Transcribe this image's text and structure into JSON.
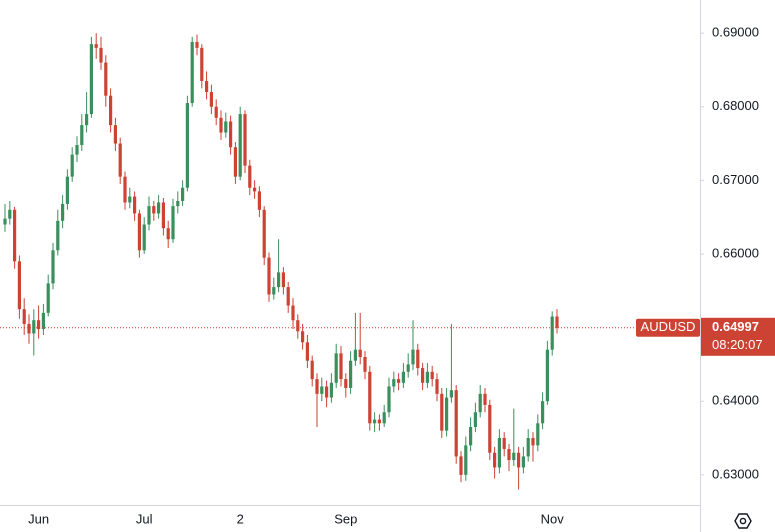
{
  "chart_data": {
    "type": "candlestick",
    "symbol": "AUDUSD",
    "countdown": "08:20:07",
    "up_color": "#3a8f5c",
    "down_color": "#cc4233",
    "ylim": [
      0.6259,
      0.6945
    ],
    "yticks": [
      {
        "value": 0.63,
        "label": "0.63000"
      },
      {
        "value": 0.64,
        "label": "0.64000"
      },
      {
        "value": 0.65,
        "label": "0.65000"
      },
      {
        "value": 0.66,
        "label": "0.66000"
      },
      {
        "value": 0.67,
        "label": "0.67000"
      },
      {
        "value": 0.68,
        "label": "0.68000"
      },
      {
        "value": 0.69,
        "label": "0.69000"
      }
    ],
    "categories": [
      null,
      null,
      null,
      null,
      null,
      null,
      null,
      "Jun",
      null,
      null,
      null,
      null,
      null,
      null,
      null,
      null,
      null,
      null,
      null,
      null,
      null,
      null,
      null,
      null,
      null,
      null,
      null,
      null,
      null,
      "Jul",
      null,
      null,
      null,
      null,
      null,
      null,
      null,
      null,
      null,
      null,
      null,
      null,
      null,
      null,
      null,
      null,
      null,
      null,
      null,
      "2",
      null,
      null,
      null,
      null,
      null,
      null,
      null,
      null,
      null,
      null,
      null,
      null,
      null,
      null,
      null,
      null,
      null,
      null,
      null,
      null,
      null,
      "Sep",
      null,
      null,
      null,
      null,
      null,
      null,
      null,
      null,
      null,
      null,
      null,
      null,
      null,
      null,
      null,
      null,
      null,
      null,
      null,
      null,
      null,
      null,
      null,
      null,
      null,
      null,
      null,
      null,
      null,
      null,
      null,
      null,
      null,
      null,
      null,
      null,
      null,
      null,
      null,
      null,
      null,
      null,
      "Nov",
      null,
      null,
      null
    ],
    "ohlc": [
      [
        0.664,
        0.6668,
        0.663,
        0.6648
      ],
      [
        0.6648,
        0.6672,
        0.664,
        0.666
      ],
      [
        0.666,
        0.6664,
        0.658,
        0.659
      ],
      [
        0.659,
        0.6598,
        0.6512,
        0.6525
      ],
      [
        0.6525,
        0.654,
        0.649,
        0.6505
      ],
      [
        0.6505,
        0.6518,
        0.6478,
        0.6492
      ],
      [
        0.6492,
        0.6525,
        0.6462,
        0.651
      ],
      [
        0.651,
        0.653,
        0.6485,
        0.6498
      ],
      [
        0.6498,
        0.6532,
        0.649,
        0.652
      ],
      [
        0.652,
        0.6572,
        0.6515,
        0.656
      ],
      [
        0.656,
        0.6615,
        0.6552,
        0.6605
      ],
      [
        0.6605,
        0.666,
        0.6598,
        0.6645
      ],
      [
        0.6645,
        0.668,
        0.6635,
        0.6668
      ],
      [
        0.6668,
        0.6715,
        0.666,
        0.6705
      ],
      [
        0.6705,
        0.6745,
        0.6698,
        0.6735
      ],
      [
        0.6735,
        0.676,
        0.6725,
        0.6748
      ],
      [
        0.6748,
        0.679,
        0.674,
        0.6775
      ],
      [
        0.6775,
        0.682,
        0.6765,
        0.679
      ],
      [
        0.679,
        0.6895,
        0.6785,
        0.6885
      ],
      [
        0.6885,
        0.69,
        0.6865,
        0.688
      ],
      [
        0.688,
        0.6895,
        0.685,
        0.686
      ],
      [
        0.686,
        0.687,
        0.68,
        0.6815
      ],
      [
        0.6815,
        0.6825,
        0.6765,
        0.6775
      ],
      [
        0.6775,
        0.6785,
        0.674,
        0.675
      ],
      [
        0.675,
        0.6758,
        0.6695,
        0.6705
      ],
      [
        0.6705,
        0.6712,
        0.666,
        0.667
      ],
      [
        0.667,
        0.669,
        0.6662,
        0.6678
      ],
      [
        0.6678,
        0.6685,
        0.6645,
        0.6655
      ],
      [
        0.6655,
        0.666,
        0.6595,
        0.6605
      ],
      [
        0.6605,
        0.665,
        0.66,
        0.664
      ],
      [
        0.664,
        0.6678,
        0.6632,
        0.6665
      ],
      [
        0.6665,
        0.6672,
        0.6645,
        0.6655
      ],
      [
        0.6655,
        0.668,
        0.6648,
        0.667
      ],
      [
        0.667,
        0.6676,
        0.6625,
        0.6635
      ],
      [
        0.6635,
        0.6645,
        0.6608,
        0.662
      ],
      [
        0.662,
        0.6675,
        0.6615,
        0.6665
      ],
      [
        0.6665,
        0.6685,
        0.6655,
        0.6672
      ],
      [
        0.6672,
        0.67,
        0.6665,
        0.669
      ],
      [
        0.669,
        0.6815,
        0.6685,
        0.6805
      ],
      [
        0.6805,
        0.6895,
        0.68,
        0.6888
      ],
      [
        0.6888,
        0.6898,
        0.687,
        0.688
      ],
      [
        0.688,
        0.6885,
        0.6825,
        0.6835
      ],
      [
        0.6835,
        0.6848,
        0.681,
        0.682
      ],
      [
        0.682,
        0.683,
        0.679,
        0.68
      ],
      [
        0.68,
        0.681,
        0.6775,
        0.6785
      ],
      [
        0.6785,
        0.6795,
        0.6755,
        0.6765
      ],
      [
        0.6765,
        0.6792,
        0.6758,
        0.678
      ],
      [
        0.678,
        0.6788,
        0.6735,
        0.6745
      ],
      [
        0.6745,
        0.6752,
        0.6695,
        0.6705
      ],
      [
        0.6705,
        0.68,
        0.67,
        0.679
      ],
      [
        0.679,
        0.6795,
        0.671,
        0.672
      ],
      [
        0.672,
        0.6728,
        0.668,
        0.669
      ],
      [
        0.669,
        0.67,
        0.6675,
        0.6685
      ],
      [
        0.6685,
        0.6692,
        0.665,
        0.666
      ],
      [
        0.666,
        0.6665,
        0.6585,
        0.6595
      ],
      [
        0.6595,
        0.6602,
        0.6535,
        0.6545
      ],
      [
        0.6545,
        0.6568,
        0.6538,
        0.6555
      ],
      [
        0.6555,
        0.662,
        0.6548,
        0.6575
      ],
      [
        0.6575,
        0.6582,
        0.6545,
        0.6555
      ],
      [
        0.6555,
        0.6562,
        0.652,
        0.653
      ],
      [
        0.653,
        0.654,
        0.6498,
        0.651
      ],
      [
        0.651,
        0.6518,
        0.6485,
        0.6495
      ],
      [
        0.6495,
        0.6505,
        0.647,
        0.648
      ],
      [
        0.648,
        0.649,
        0.6445,
        0.6455
      ],
      [
        0.6455,
        0.6462,
        0.642,
        0.643
      ],
      [
        0.643,
        0.6438,
        0.6365,
        0.641
      ],
      [
        0.641,
        0.6432,
        0.64,
        0.642
      ],
      [
        0.642,
        0.6428,
        0.6392,
        0.6405
      ],
      [
        0.6405,
        0.6438,
        0.6398,
        0.6425
      ],
      [
        0.6425,
        0.6478,
        0.6418,
        0.6465
      ],
      [
        0.6465,
        0.6475,
        0.642,
        0.643
      ],
      [
        0.643,
        0.6438,
        0.6405,
        0.6418
      ],
      [
        0.6418,
        0.6468,
        0.641,
        0.6455
      ],
      [
        0.6455,
        0.652,
        0.6448,
        0.647
      ],
      [
        0.647,
        0.652,
        0.645,
        0.646
      ],
      [
        0.646,
        0.6468,
        0.643,
        0.644
      ],
      [
        0.644,
        0.6448,
        0.636,
        0.637
      ],
      [
        0.637,
        0.6385,
        0.6358,
        0.6375
      ],
      [
        0.6375,
        0.6382,
        0.636,
        0.637
      ],
      [
        0.637,
        0.6395,
        0.6365,
        0.6385
      ],
      [
        0.6385,
        0.6432,
        0.6378,
        0.642
      ],
      [
        0.642,
        0.644,
        0.6412,
        0.643
      ],
      [
        0.643,
        0.6438,
        0.6415,
        0.6425
      ],
      [
        0.6425,
        0.6452,
        0.6418,
        0.644
      ],
      [
        0.644,
        0.6465,
        0.6432,
        0.645
      ],
      [
        0.645,
        0.651,
        0.6442,
        0.647
      ],
      [
        0.647,
        0.6478,
        0.6435,
        0.6445
      ],
      [
        0.6445,
        0.6452,
        0.6415,
        0.6425
      ],
      [
        0.6425,
        0.6452,
        0.6418,
        0.644
      ],
      [
        0.644,
        0.6448,
        0.642,
        0.643
      ],
      [
        0.643,
        0.6438,
        0.64,
        0.641
      ],
      [
        0.641,
        0.6418,
        0.635,
        0.636
      ],
      [
        0.636,
        0.6418,
        0.6352,
        0.6405
      ],
      [
        0.6405,
        0.6505,
        0.6398,
        0.6415
      ],
      [
        0.6415,
        0.6422,
        0.6315,
        0.6325
      ],
      [
        0.6325,
        0.6332,
        0.629,
        0.63
      ],
      [
        0.63,
        0.6352,
        0.6292,
        0.634
      ],
      [
        0.634,
        0.6378,
        0.6332,
        0.6365
      ],
      [
        0.6365,
        0.6398,
        0.6358,
        0.6385
      ],
      [
        0.6385,
        0.6422,
        0.6378,
        0.641
      ],
      [
        0.641,
        0.6418,
        0.6385,
        0.6395
      ],
      [
        0.6395,
        0.6402,
        0.632,
        0.633
      ],
      [
        0.633,
        0.6338,
        0.6295,
        0.631
      ],
      [
        0.631,
        0.6362,
        0.6302,
        0.635
      ],
      [
        0.635,
        0.6358,
        0.6325,
        0.6335
      ],
      [
        0.6335,
        0.6342,
        0.6305,
        0.632
      ],
      [
        0.632,
        0.639,
        0.6312,
        0.633
      ],
      [
        0.633,
        0.6338,
        0.628,
        0.631
      ],
      [
        0.631,
        0.6338,
        0.6302,
        0.6325
      ],
      [
        0.6325,
        0.6362,
        0.6318,
        0.635
      ],
      [
        0.635,
        0.6358,
        0.6318,
        0.634
      ],
      [
        0.634,
        0.6382,
        0.6332,
        0.637
      ],
      [
        0.637,
        0.6412,
        0.6362,
        0.64
      ],
      [
        0.64,
        0.6482,
        0.6395,
        0.647
      ],
      [
        0.647,
        0.6522,
        0.6462,
        0.6515
      ],
      [
        0.6515,
        0.6525,
        0.6492,
        0.64997
      ]
    ]
  }
}
